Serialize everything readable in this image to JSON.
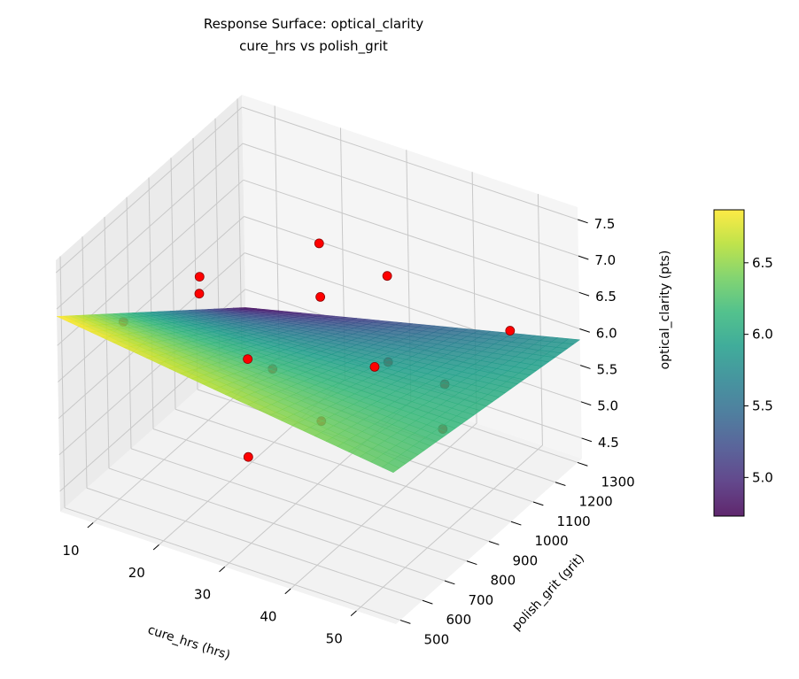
{
  "chart_data": {
    "type": "surface3d",
    "title": "Response Surface: optical_clarity",
    "subtitle": "cure_hrs vs polish_grit",
    "xlabel": "cure_hrs (hrs)",
    "ylabel": "polish_grit (grit)",
    "zlabel": "optical_clarity (pts)",
    "xlim": [
      5,
      56
    ],
    "ylim": [
      480,
      1320
    ],
    "zlim": [
      4.22,
      7.67
    ],
    "xticks": [
      10,
      20,
      30,
      40,
      50
    ],
    "yticks": [
      500,
      600,
      700,
      800,
      900,
      1000,
      1100,
      1200,
      1300
    ],
    "zticks": [
      4.5,
      5.0,
      5.5,
      6.0,
      6.5,
      7.0,
      7.5
    ],
    "xtick_labels": [
      "10",
      "20",
      "30",
      "40",
      "50"
    ],
    "ytick_labels": [
      "500",
      "600",
      "700",
      "800",
      "900",
      "1000",
      "1100",
      "1200",
      "1300"
    ],
    "ztick_labels": [
      "4.5",
      "5.0",
      "5.5",
      "6.0",
      "6.5",
      "7.0",
      "7.5"
    ],
    "surface": {
      "colormap": "viridis",
      "alpha": 0.85,
      "corner_values": {
        "xmin_ymin": 6.9,
        "xmax_ymin": 6.3,
        "xmax_ymax": 5.85,
        "xmin_ymax": 4.75
      }
    },
    "colorbar": {
      "range": [
        4.73,
        6.87
      ],
      "ticks": [
        5.0,
        5.5,
        6.0,
        6.5
      ],
      "tick_labels": [
        "5.0",
        "5.5",
        "6.0",
        "6.5"
      ]
    },
    "points": {
      "color": "#ff0000",
      "edge_color": "#8b0000",
      "data": [
        {
          "x": 6.5,
          "y": 732,
          "z": 6.19
        },
        {
          "x": 9.6,
          "y": 984,
          "z": 6.22
        },
        {
          "x": 12.4,
          "y": 900,
          "z": 6.3
        },
        {
          "x": 19.3,
          "y": 1236,
          "z": 6.29
        },
        {
          "x": 32.5,
          "y": 1152,
          "z": 6.47
        },
        {
          "x": 28.0,
          "y": 984,
          "z": 6.5
        },
        {
          "x": 46.8,
          "y": 1278,
          "z": 5.81
        },
        {
          "x": 25.4,
          "y": 732,
          "z": 6.25
        },
        {
          "x": 23.4,
          "y": 900,
          "z": 5.6
        },
        {
          "x": 35.3,
          "y": 1068,
          "z": 5.6
        },
        {
          "x": 39.0,
          "y": 900,
          "z": 6.1
        },
        {
          "x": 41.0,
          "y": 1152,
          "z": 5.24
        },
        {
          "x": 33.6,
          "y": 816,
          "z": 5.42
        },
        {
          "x": 47.8,
          "y": 942,
          "z": 5.4
        },
        {
          "x": 31.0,
          "y": 564,
          "z": 5.53
        }
      ]
    }
  }
}
